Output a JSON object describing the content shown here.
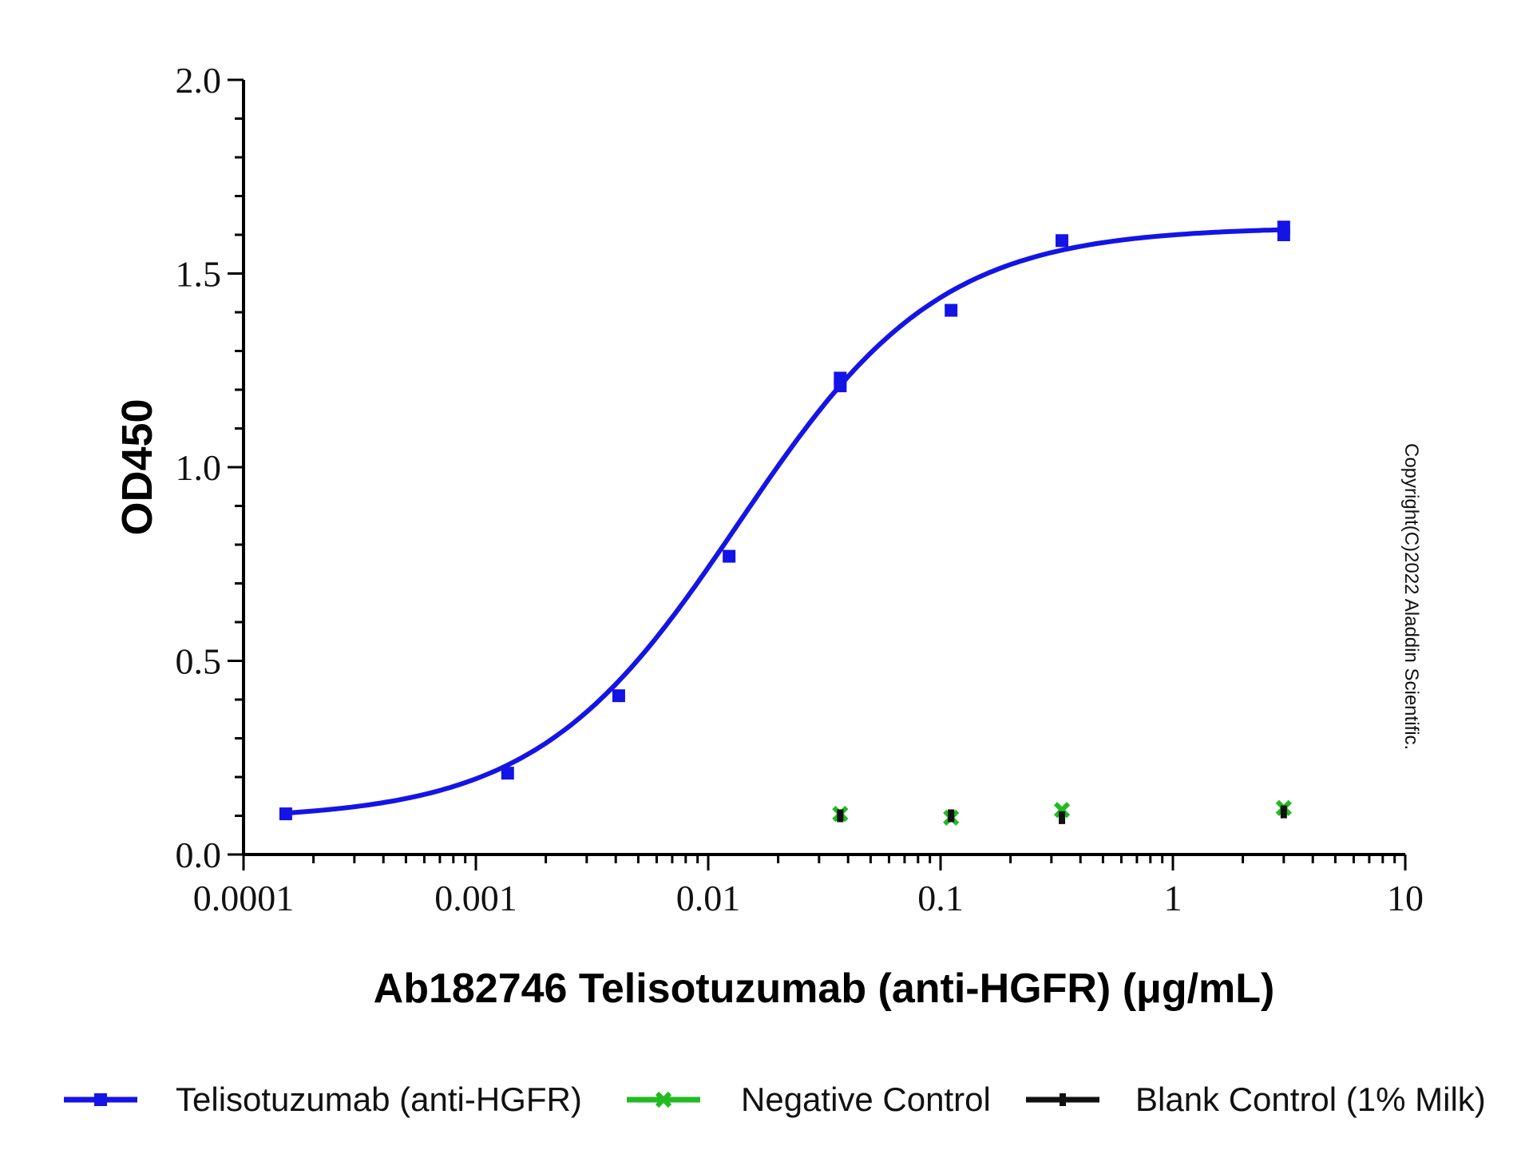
{
  "chart_data": {
    "type": "scatter",
    "x_scale": "log",
    "xlabel": "Ab182746 Telisotuzumab (anti-HGFR) (μg/mL)",
    "ylabel": "OD450",
    "xlim": [
      0.0001,
      10
    ],
    "ylim": [
      0,
      2.0
    ],
    "x_ticks": [
      {
        "value": 0.0001,
        "label": "0.0001"
      },
      {
        "value": 0.001,
        "label": "0.001"
      },
      {
        "value": 0.01,
        "label": "0.01"
      },
      {
        "value": 0.1,
        "label": "0.1"
      },
      {
        "value": 1,
        "label": "1"
      },
      {
        "value": 10,
        "label": "10"
      }
    ],
    "y_ticks": [
      {
        "value": 0,
        "label": "0.0"
      },
      {
        "value": 0.5,
        "label": "0.5"
      },
      {
        "value": 1.0,
        "label": "1.0"
      },
      {
        "value": 1.5,
        "label": "1.5"
      },
      {
        "value": 2.0,
        "label": "2.0"
      }
    ],
    "legend_position": "bottom",
    "series": [
      {
        "name": "Telisotuzumab (anti-HGFR)",
        "color": "#1414e6",
        "marker": "square",
        "fit": "4PL",
        "fit_params": {
          "bottom": 0.09,
          "top": 1.62,
          "ec50": 0.0135,
          "hill": 1.0
        },
        "points": [
          {
            "x": 0.000152,
            "y": 0.105
          },
          {
            "x": 0.00137,
            "y": 0.21
          },
          {
            "x": 0.00412,
            "y": 0.41
          },
          {
            "x": 0.0123,
            "y": 0.77
          },
          {
            "x": 0.037,
            "y": 1.23
          },
          {
            "x": 0.037,
            "y": 1.21
          },
          {
            "x": 0.111,
            "y": 1.405
          },
          {
            "x": 0.333,
            "y": 1.585
          },
          {
            "x": 3.0,
            "y": 1.62
          },
          {
            "x": 3.0,
            "y": 1.6
          }
        ]
      },
      {
        "name": "Negative Control",
        "color": "#22bb22",
        "marker": "x",
        "points": [
          {
            "x": 0.037,
            "y": 0.105
          },
          {
            "x": 0.111,
            "y": 0.095
          },
          {
            "x": 0.333,
            "y": 0.115
          },
          {
            "x": 3.0,
            "y": 0.12
          }
        ]
      },
      {
        "name": "Blank Control (1% Milk)",
        "color": "#111111",
        "marker": "dash",
        "points": [
          {
            "x": 0.037,
            "y": 0.1
          },
          {
            "x": 0.111,
            "y": 0.1
          },
          {
            "x": 0.333,
            "y": 0.095
          },
          {
            "x": 3.0,
            "y": 0.11
          }
        ]
      }
    ],
    "annotations": [
      "Copyright(C)2022 Aladdin Scientific."
    ]
  }
}
